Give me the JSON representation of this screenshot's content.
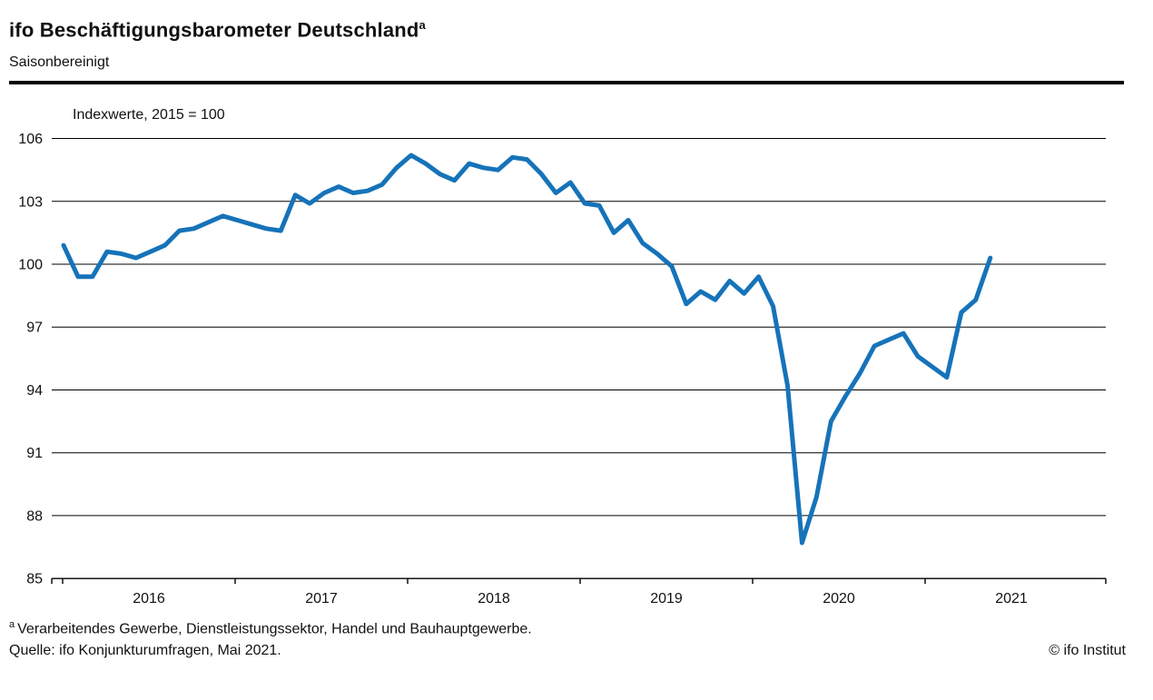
{
  "header": {
    "title": "ifo Beschäftigungsbarometer Deutschland",
    "title_superscript": "a",
    "subtitle": "Saisonbereinigt"
  },
  "chart_data": {
    "type": "line",
    "title": "ifo Beschäftigungsbarometer Deutschland (saisonbereinigt)",
    "annotation": "Indexwerte, 2015 = 100",
    "ylabel": "Indexwerte, 2015 = 100",
    "xlabel": "",
    "ylim": [
      85,
      106
    ],
    "yticks": [
      85,
      88,
      91,
      94,
      97,
      100,
      103,
      106
    ],
    "xticks": [
      "2016",
      "2017",
      "2018",
      "2019",
      "2020",
      "2021"
    ],
    "grid": "horizontal",
    "legend": "none",
    "line_color": "#1673b9",
    "x": [
      "2016-01",
      "2016-02",
      "2016-03",
      "2016-04",
      "2016-05",
      "2016-06",
      "2016-07",
      "2016-08",
      "2016-09",
      "2016-10",
      "2016-11",
      "2016-12",
      "2017-01",
      "2017-02",
      "2017-03",
      "2017-04",
      "2017-05",
      "2017-06",
      "2017-07",
      "2017-08",
      "2017-09",
      "2017-10",
      "2017-11",
      "2017-12",
      "2018-01",
      "2018-02",
      "2018-03",
      "2018-04",
      "2018-05",
      "2018-06",
      "2018-07",
      "2018-08",
      "2018-09",
      "2018-10",
      "2018-11",
      "2018-12",
      "2019-01",
      "2019-02",
      "2019-03",
      "2019-04",
      "2019-05",
      "2019-06",
      "2019-07",
      "2019-08",
      "2019-09",
      "2019-10",
      "2019-11",
      "2019-12",
      "2020-01",
      "2020-02",
      "2020-03",
      "2020-04",
      "2020-05",
      "2020-06",
      "2020-07",
      "2020-08",
      "2020-09",
      "2020-10",
      "2020-11",
      "2020-12",
      "2021-01",
      "2021-02",
      "2021-03",
      "2021-04",
      "2021-05"
    ],
    "values": [
      100.9,
      99.4,
      99.4,
      100.6,
      100.5,
      100.3,
      100.6,
      100.9,
      101.6,
      101.7,
      102.0,
      102.3,
      102.1,
      101.9,
      101.7,
      101.6,
      103.3,
      102.9,
      103.4,
      103.7,
      103.4,
      103.5,
      103.8,
      104.6,
      105.2,
      104.8,
      104.3,
      104.0,
      104.8,
      104.6,
      104.5,
      105.1,
      105.0,
      104.3,
      103.4,
      103.9,
      102.9,
      102.8,
      101.5,
      102.1,
      101.0,
      100.5,
      99.9,
      98.1,
      98.7,
      98.3,
      99.2,
      98.6,
      99.4,
      98.0,
      94.2,
      86.7,
      88.9,
      92.5,
      93.7,
      94.8,
      96.1,
      96.4,
      96.7,
      95.6,
      95.1,
      94.6,
      97.7,
      98.3,
      100.3
    ]
  },
  "footer": {
    "footnote_marker": "a",
    "footnote": "Verarbeitendes Gewerbe, Dienstleistungssektor, Handel und Bauhauptgewerbe.",
    "source": "Quelle: ifo Konjunkturumfragen, Mai 2021.",
    "copyright": "© ifo Institut"
  }
}
